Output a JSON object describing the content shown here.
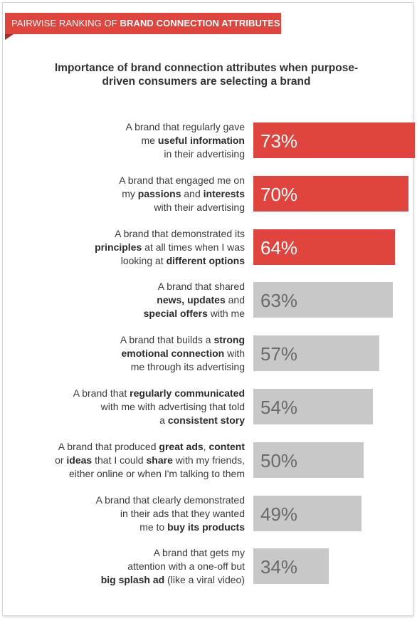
{
  "banner": {
    "prefix": "PAIRWISE RANKING OF ",
    "emphasis": "BRAND CONNECTION ATTRIBUTES"
  },
  "colors": {
    "highlight": "#e0453d",
    "muted": "#c8c8c8",
    "highlight_text": "#ffffff",
    "muted_text": "#6a6a6a"
  },
  "chart_data": {
    "type": "bar",
    "orientation": "horizontal",
    "title": "Importance of brand connection attributes when purpose-driven consumers are selecting a brand",
    "categories": [
      "A brand that regularly gave me useful information in their advertising",
      "A brand that engaged me on my passions and interests with their advertising",
      "A brand that demonstrated its principles at all times when I was looking at different options",
      "A brand that shared news, updates and special offers with me",
      "A brand that builds a strong emotional connection with me through its advertising",
      "A brand that regularly communicated with me with advertising that told a consistent story",
      "A brand that produced great ads, content or ideas that I could share with my friends, either online or when I'm talking to them",
      "A brand that clearly demonstrated in their ads that they wanted me to buy its products",
      "A brand that gets my attention with a one-off but big splash ad (like a viral video)"
    ],
    "label_lines": [
      [
        [
          [
            "A brand that regularly gave",
            false
          ]
        ],
        [
          [
            "me ",
            false
          ],
          [
            "useful information",
            true
          ]
        ],
        [
          [
            "in their advertising",
            false
          ]
        ]
      ],
      [
        [
          [
            "A brand that engaged me on",
            false
          ]
        ],
        [
          [
            "my ",
            false
          ],
          [
            "passions",
            true
          ],
          [
            " and ",
            false
          ],
          [
            "interests",
            true
          ]
        ],
        [
          [
            "with their advertising",
            false
          ]
        ]
      ],
      [
        [
          [
            "A brand that demonstrated its",
            false
          ]
        ],
        [
          [
            "principles",
            true
          ],
          [
            " at all times when I was",
            false
          ]
        ],
        [
          [
            "looking at ",
            false
          ],
          [
            "different options",
            true
          ]
        ]
      ],
      [
        [
          [
            "A brand that shared",
            false
          ]
        ],
        [
          [
            "news, updates",
            true
          ],
          [
            " and",
            false
          ]
        ],
        [
          [
            "special offers",
            true
          ],
          [
            " with me",
            false
          ]
        ]
      ],
      [
        [
          [
            "A brand that builds a ",
            false
          ],
          [
            "strong",
            true
          ]
        ],
        [
          [
            "emotional connection",
            true
          ],
          [
            " with",
            false
          ]
        ],
        [
          [
            "me through its advertising",
            false
          ]
        ]
      ],
      [
        [
          [
            "A brand that ",
            false
          ],
          [
            "regularly communicated",
            true
          ]
        ],
        [
          [
            "with me with advertising that told",
            false
          ]
        ],
        [
          [
            "a ",
            false
          ],
          [
            "consistent story",
            true
          ]
        ]
      ],
      [
        [
          [
            "A brand that produced ",
            false
          ],
          [
            "great ads",
            true
          ],
          [
            ", ",
            false
          ],
          [
            "content",
            true
          ]
        ],
        [
          [
            "or ",
            false
          ],
          [
            "ideas",
            true
          ],
          [
            " that I could ",
            false
          ],
          [
            "share",
            true
          ],
          [
            " with my friends,",
            false
          ]
        ],
        [
          [
            "either online or when I'm talking to them",
            false
          ]
        ]
      ],
      [
        [
          [
            "A brand that clearly demonstrated",
            false
          ]
        ],
        [
          [
            "in their ads that they wanted",
            false
          ]
        ],
        [
          [
            "me to ",
            false
          ],
          [
            "buy its products",
            true
          ]
        ]
      ],
      [
        [
          [
            "A brand that gets my",
            false
          ]
        ],
        [
          [
            "attention with a one-off but",
            false
          ]
        ],
        [
          [
            "big splash ad",
            true
          ],
          [
            " (like a viral video)",
            false
          ]
        ]
      ]
    ],
    "values": [
      73,
      70,
      64,
      63,
      57,
      54,
      50,
      49,
      34
    ],
    "value_labels": [
      "73%",
      "70%",
      "64%",
      "63%",
      "57%",
      "54%",
      "50%",
      "49%",
      "34%"
    ],
    "highlighted": [
      true,
      true,
      true,
      false,
      false,
      false,
      false,
      false,
      false
    ],
    "unit": "%",
    "xlim": [
      0,
      100
    ],
    "xlabel": "",
    "ylabel": "",
    "grid": false,
    "legend": "none"
  }
}
